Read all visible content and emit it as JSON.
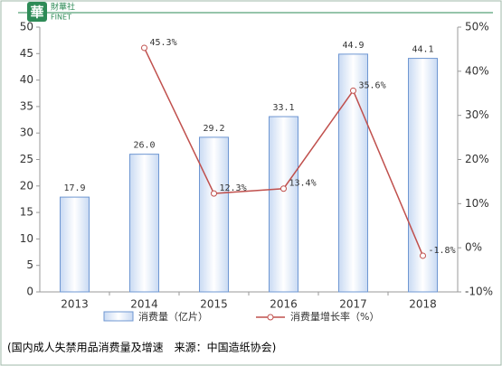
{
  "logo": {
    "mark": "華",
    "name": "財華社",
    "sub": "FINET"
  },
  "chart_data": {
    "type": "bar",
    "categories": [
      "2013",
      "2014",
      "2015",
      "2016",
      "2017",
      "2018"
    ],
    "series": [
      {
        "name": "消费量（亿片）",
        "type": "bar",
        "color": "#6f97d2",
        "values": [
          17.9,
          26.0,
          29.2,
          33.1,
          44.9,
          44.1
        ],
        "value_labels": [
          "17.9",
          "26.0",
          "29.2",
          "33.1",
          "44.9",
          "44.1"
        ]
      },
      {
        "name": "消费量增长率（%）",
        "type": "line",
        "axis": "y2",
        "color": "#c0504d",
        "values": [
          null,
          45.3,
          12.3,
          13.4,
          35.6,
          -1.8
        ],
        "value_labels": [
          null,
          "45.3%",
          "12.3%",
          "13.4%",
          "35.6%",
          "-1.8%"
        ]
      }
    ],
    "ylim": [
      0,
      50
    ],
    "yticks": [
      0,
      5,
      10,
      15,
      20,
      25,
      30,
      35,
      40,
      45,
      50
    ],
    "y2lim": [
      -10,
      50
    ],
    "y2ticks": [
      {
        "value": -10,
        "label": "-10%"
      },
      {
        "value": 0,
        "label": "0%"
      },
      {
        "value": 10,
        "label": "10%"
      },
      {
        "value": 20,
        "label": "20%"
      },
      {
        "value": 30,
        "label": "30%"
      },
      {
        "value": 40,
        "label": "40%"
      },
      {
        "value": 50,
        "label": "50%"
      }
    ],
    "caption": "(国内成人失禁用品消费量及增速　来源：中国造纸协会)"
  }
}
